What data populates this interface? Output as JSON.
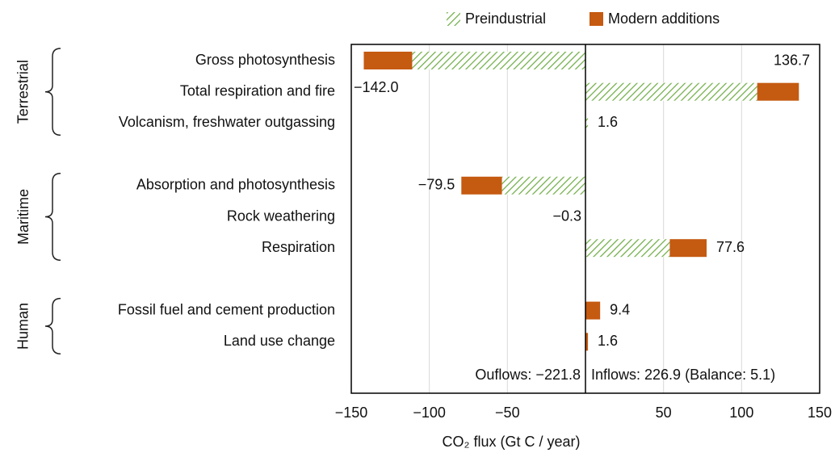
{
  "chart_data": {
    "type": "stacked-bar-horizontal",
    "groups": [
      {
        "name": "Terrestrial",
        "categories": [
          "Gross photosynthesis",
          "Total respiration and fire",
          "Volcanism, freshwater outgassing"
        ]
      },
      {
        "name": "Maritime",
        "categories": [
          "Absorption and photosynthesis",
          "Rock weathering",
          "Respiration"
        ]
      },
      {
        "name": "Human",
        "categories": [
          "Fossil fuel and cement production",
          "Land use change"
        ]
      }
    ],
    "series": [
      {
        "name": "Preindustrial",
        "color": "#70ad47",
        "pattern": "hatch",
        "values": [
          -111,
          110,
          1.6,
          -53.5,
          -0.3,
          54,
          0,
          0
        ]
      },
      {
        "name": "Modern additions",
        "color": "#c55a11",
        "values": [
          -31,
          26.7,
          0,
          -26,
          0,
          23.6,
          9.4,
          1.6
        ]
      }
    ],
    "totals": [
      -142.0,
      136.7,
      1.6,
      -79.5,
      -0.3,
      77.6,
      9.4,
      1.6
    ],
    "total_labels": [
      "−142.0",
      "136.7",
      "1.6",
      "−79.5",
      "−0.3",
      "77.6",
      "9.4",
      "1.6"
    ],
    "annotations": [
      "Ouflows: −221.8",
      "Inflows: 226.9 (Balance: 5.1)"
    ],
    "xlabel": "CO₂ flux (Gt C / year)",
    "xlim": [
      -150,
      150
    ],
    "xticks": [
      {
        "value": -150,
        "label": "−150"
      },
      {
        "value": -100,
        "label": "−100"
      },
      {
        "value": -50,
        "label": "−50"
      },
      50,
      100,
      150
    ],
    "grid": true,
    "legend": "top"
  }
}
